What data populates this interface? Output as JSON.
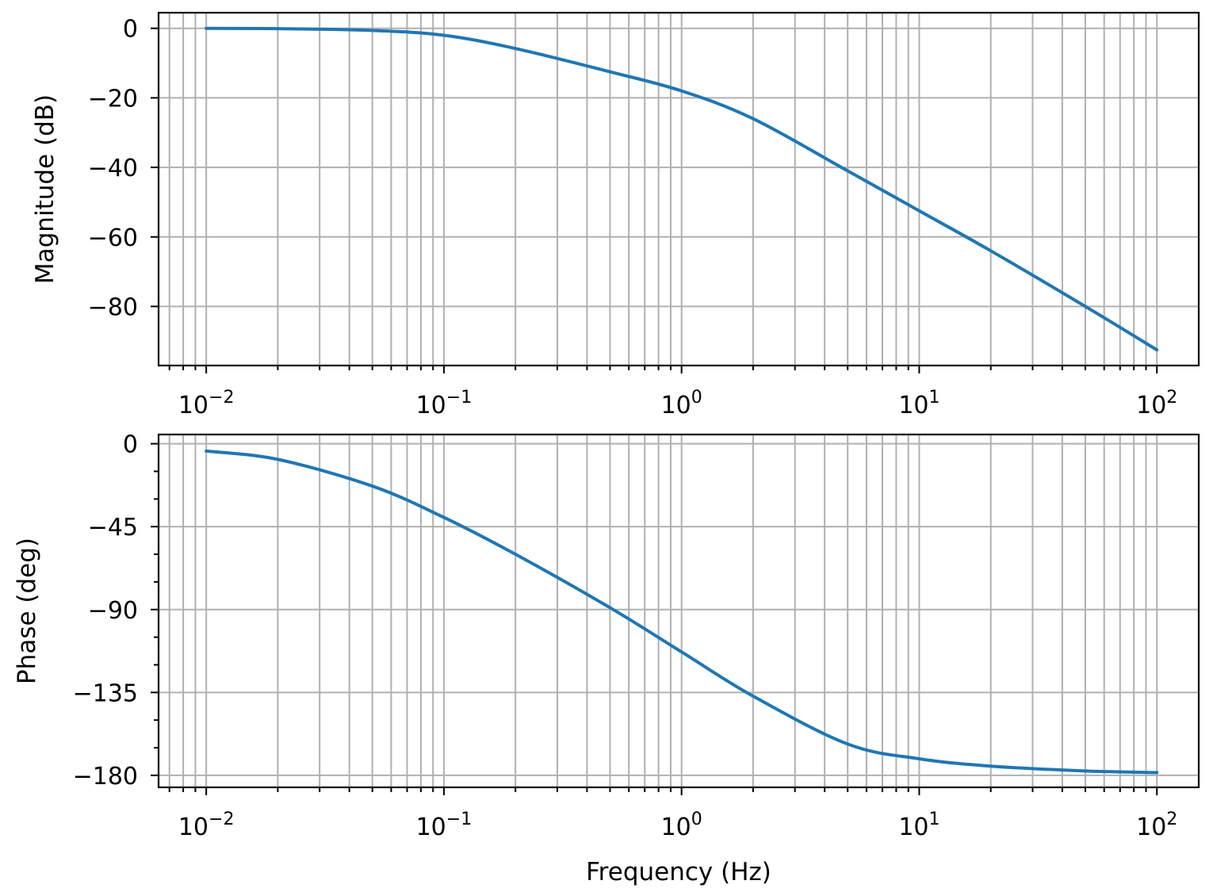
{
  "chart_data": [
    {
      "type": "line",
      "ylabel": "Magnitude (dB)",
      "xlabel": "",
      "xscale": "log",
      "xlim": [
        0.0063,
        150
      ],
      "ylim": [
        -97,
        4.5
      ],
      "grid": "major and minor on",
      "x_ticks": [
        0.01,
        0.1,
        1,
        10,
        100
      ],
      "x_tick_labels": [
        {
          "base": "10",
          "exp": "−2"
        },
        {
          "base": "10",
          "exp": "−1"
        },
        {
          "base": "10",
          "exp": "0"
        },
        {
          "base": "10",
          "exp": "1"
        },
        {
          "base": "10",
          "exp": "2"
        }
      ],
      "y_ticks": [
        0,
        -20,
        -40,
        -60,
        -80
      ],
      "y_tick_labels": [
        "0",
        "−20",
        "−40",
        "−60",
        "−80"
      ],
      "series": [
        {
          "color": "#1f77b4",
          "x": [
            0.01,
            0.02,
            0.05,
            0.1,
            0.2,
            0.5,
            1,
            2,
            5,
            10,
            20,
            50,
            100
          ],
          "y": [
            0,
            -0.1,
            -0.6,
            -2,
            -5.8,
            -12.5,
            -18,
            -26,
            -41,
            -52.5,
            -64,
            -80,
            -92.5
          ]
        }
      ]
    },
    {
      "type": "line",
      "ylabel": "Phase (deg)",
      "xlabel": "Frequency (Hz)",
      "xscale": "log",
      "xlim": [
        0.0063,
        150
      ],
      "ylim": [
        -186.5,
        5
      ],
      "grid": "major and minor on",
      "x_ticks": [
        0.01,
        0.1,
        1,
        10,
        100
      ],
      "x_tick_labels": [
        {
          "base": "10",
          "exp": "−2"
        },
        {
          "base": "10",
          "exp": "−1"
        },
        {
          "base": "10",
          "exp": "0"
        },
        {
          "base": "10",
          "exp": "1"
        },
        {
          "base": "10",
          "exp": "2"
        }
      ],
      "y_ticks": [
        0,
        -45,
        -90,
        -135,
        -180
      ],
      "y_tick_labels": [
        "0",
        "−45",
        "−90",
        "−135",
        "−180"
      ],
      "y_minor_ticks": [
        -15,
        -30,
        -60,
        -75,
        -105,
        -120,
        -150,
        -165
      ],
      "series": [
        {
          "color": "#1f77b4",
          "x": [
            0.01,
            0.02,
            0.05,
            0.1,
            0.2,
            0.5,
            1,
            2,
            5,
            10,
            20,
            50,
            100
          ],
          "y": [
            -4,
            -8.5,
            -23,
            -40,
            -60,
            -89,
            -113,
            -137,
            -163,
            -171,
            -175,
            -177.6,
            -178.5
          ]
        }
      ]
    }
  ]
}
